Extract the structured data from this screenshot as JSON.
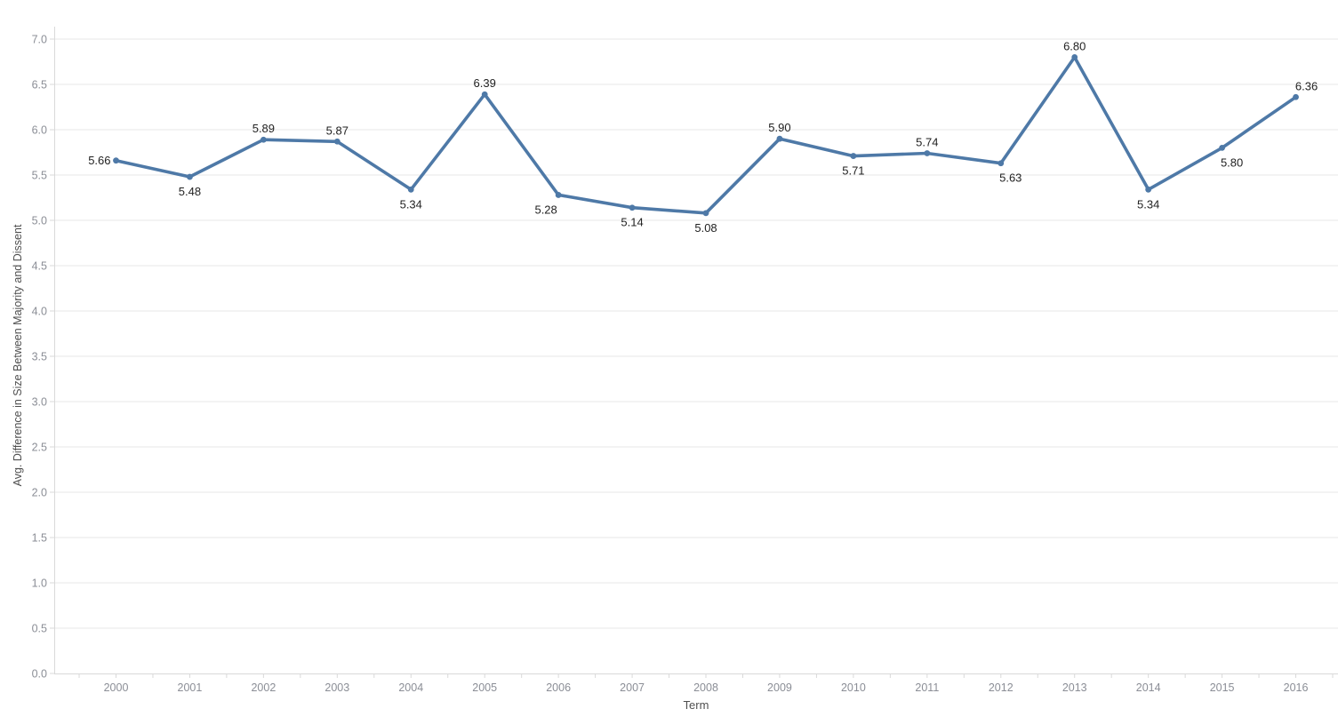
{
  "chart_data": {
    "type": "line",
    "title": "",
    "xlabel": "Term",
    "ylabel": "Avg. Difference in Size Between Majority and Dissent",
    "x": [
      2000,
      2001,
      2002,
      2003,
      2004,
      2005,
      2006,
      2007,
      2008,
      2009,
      2010,
      2011,
      2012,
      2013,
      2014,
      2015,
      2016
    ],
    "values": [
      5.66,
      5.48,
      5.89,
      5.87,
      5.34,
      6.39,
      5.28,
      5.14,
      5.08,
      5.9,
      5.71,
      5.74,
      5.63,
      6.8,
      5.34,
      5.8,
      6.36
    ],
    "point_labels": [
      "5.66",
      "5.48",
      "5.89",
      "5.87",
      "5.34",
      "6.39",
      "5.28",
      "5.14",
      "5.08",
      "5.90",
      "5.71",
      "5.74",
      "5.63",
      "6.80",
      "5.34",
      "5.80",
      "6.36"
    ],
    "label_pos": [
      "left",
      "below",
      "above",
      "above",
      "below",
      "above",
      "below",
      "below",
      "below",
      "above",
      "below",
      "above",
      "below",
      "above",
      "below",
      "below",
      "above"
    ],
    "label_dx": [
      0,
      0,
      0,
      0,
      0,
      0,
      -14,
      0,
      0,
      0,
      0,
      0,
      11,
      0,
      0,
      11,
      12
    ],
    "xtick_labels": [
      "2000",
      "2001",
      "2002",
      "2003",
      "2004",
      "2005",
      "2006",
      "2007",
      "2008",
      "2009",
      "2010",
      "2011",
      "2012",
      "2013",
      "2014",
      "2015",
      "2016"
    ],
    "ytick_labels": [
      "0.0",
      "0.5",
      "1.0",
      "1.5",
      "2.0",
      "2.5",
      "3.0",
      "3.5",
      "4.0",
      "4.5",
      "5.0",
      "5.5",
      "6.0",
      "6.5",
      "7.0"
    ],
    "ytick_values": [
      0.0,
      0.5,
      1.0,
      1.5,
      2.0,
      2.5,
      3.0,
      3.5,
      4.0,
      4.5,
      5.0,
      5.5,
      6.0,
      6.5,
      7.0
    ],
    "ylim": [
      0,
      7
    ],
    "grid": "horizontal",
    "legend": "none",
    "colors": {
      "line": "#4e79a7",
      "marker": "#4e79a7",
      "point_label": "#222222",
      "tick_label": "#8b8e96",
      "axis_title": "#4f4f4f",
      "gridline": "#efefef",
      "axis_line": "#d9d9d9",
      "background": "#ffffff"
    }
  }
}
